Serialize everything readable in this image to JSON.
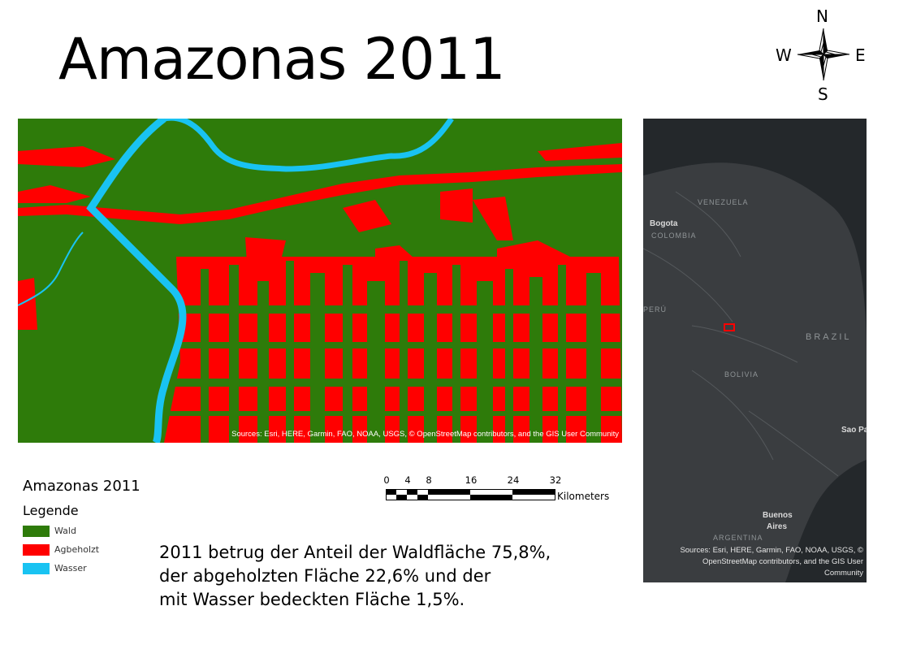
{
  "title": "Amazonas 2011",
  "compass": {
    "n": "N",
    "s": "S",
    "e": "E",
    "w": "W"
  },
  "main_map": {
    "attribution": "Sources: Esri, HERE, Garmin, FAO, NOAA, USGS, © OpenStreetMap contributors, and the GIS User Community"
  },
  "overview_map": {
    "labels": {
      "venezuela": "VENEZUELA",
      "bogota": "Bogota",
      "colombia": "COLOMBIA",
      "peru": "PERÚ",
      "brazil": "BRAZIL",
      "bolivia": "BOLIVIA",
      "sao_paulo": "Sao Pa",
      "buenos_aires_1": "Buenos",
      "buenos_aires_2": "Aires",
      "argentina": "ARGENTINA"
    },
    "attribution": "Sources: Esri, HERE, Garmin, FAO, NOAA, USGS, © OpenStreetMap contributors, and the GIS User Community"
  },
  "legend": {
    "title": "Amazonas 2011",
    "subtitle": "Legende",
    "items": [
      {
        "label": "Wald",
        "color": "#2e7b0a"
      },
      {
        "label": "Agbeholzt",
        "color": "#ff0000"
      },
      {
        "label": "Wasser",
        "color": "#19c3f2"
      }
    ]
  },
  "scalebar": {
    "ticks": [
      "0",
      "4",
      "8",
      "16",
      "24",
      "32"
    ],
    "unit": "Kilometers"
  },
  "description": {
    "line1": "2011 betrug der Anteil der Waldfläche 75,8%,",
    "line2": "der abgeholzten Fläche 22,6% und der",
    "line3": "mit Wasser bedeckten Fläche 1,5%."
  },
  "colors": {
    "forest": "#2e7b0a",
    "deforested": "#ff0000",
    "water": "#19c3f2",
    "overview_land": "#3a3d40",
    "overview_sea": "#24282b"
  }
}
